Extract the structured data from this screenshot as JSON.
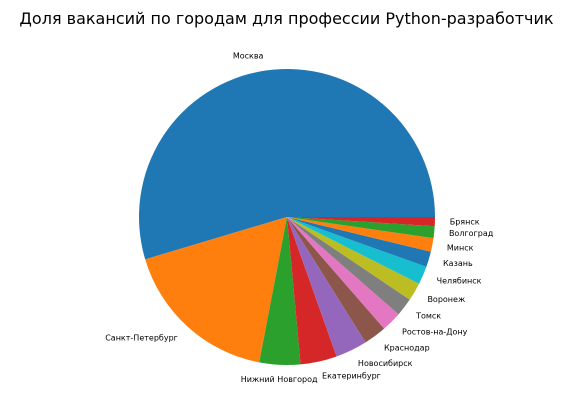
{
  "chart_data": {
    "type": "pie",
    "title": "Доля вакансий по городам для профессии Python-разработчик",
    "categories": [
      "Москва",
      "Санкт-Петербург",
      "Нижний Новгород",
      "Екатеринбург",
      "Новосибирск",
      "Краснодар",
      "Ростов-на-Дону",
      "Томск",
      "Воронеж",
      "Челябинск",
      "Казань",
      "Минск",
      "Волгоград",
      "Брянск"
    ],
    "values": [
      55.0,
      17.5,
      4.5,
      4.0,
      3.5,
      2.5,
      2.2,
      2.0,
      2.0,
      2.0,
      1.7,
      1.5,
      1.3,
      1.0
    ],
    "colors": [
      "#1f77b4",
      "#ff7f0e",
      "#2ca02c",
      "#d62728",
      "#9467bd",
      "#8c564b",
      "#e377c2",
      "#7f7f7f",
      "#bcbd22",
      "#17becf",
      "#1f77b4",
      "#ff7f0e",
      "#2ca02c",
      "#d62728"
    ],
    "start_angle_deg": 0,
    "direction": "counterclockwise"
  }
}
